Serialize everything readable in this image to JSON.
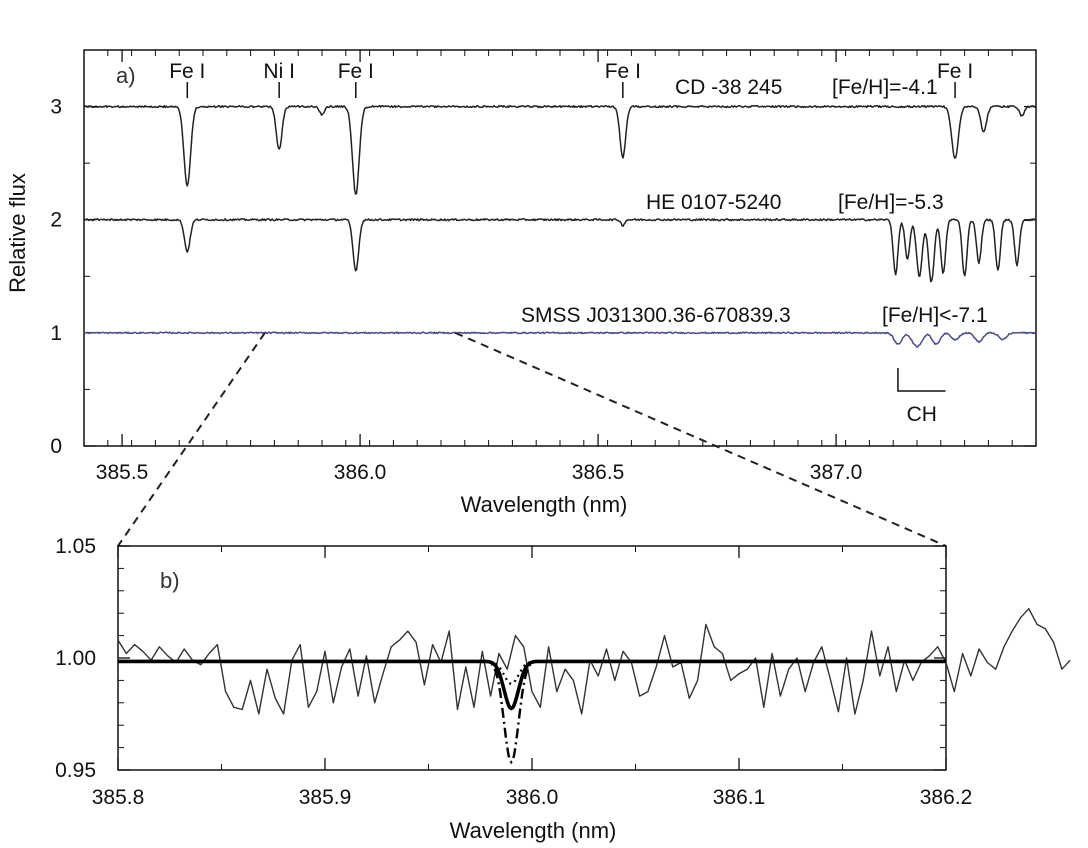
{
  "chart_data": [
    {
      "panel": "a",
      "type": "line",
      "panel_label": "a)",
      "xlabel": "Wavelength (nm)",
      "ylabel": "Relative flux",
      "xlim": [
        385.42,
        387.42
      ],
      "ylim": [
        0,
        3.5
      ],
      "xticks": [
        385.5,
        386.0,
        386.5,
        387.0
      ],
      "xtick_labels": [
        "385.5",
        "386.0",
        "386.5",
        "387.0"
      ],
      "yticks": [
        0,
        1,
        2,
        3
      ],
      "ytick_labels": [
        "0",
        "1",
        "2",
        "3"
      ],
      "series": [
        {
          "label": "CD -38 245",
          "metallicity": "[Fe/H]=-4.1",
          "baseline": 3.0,
          "noise": 0.008,
          "lines": [
            {
              "x": 385.637,
              "depth": 0.7,
              "width": 0.007
            },
            {
              "x": 385.83,
              "depth": 0.38,
              "width": 0.006
            },
            {
              "x": 385.92,
              "depth": 0.07,
              "width": 0.005
            },
            {
              "x": 385.991,
              "depth": 0.78,
              "width": 0.007
            },
            {
              "x": 386.552,
              "depth": 0.45,
              "width": 0.006
            },
            {
              "x": 387.25,
              "depth": 0.46,
              "width": 0.007
            },
            {
              "x": 387.31,
              "depth": 0.22,
              "width": 0.006
            },
            {
              "x": 387.39,
              "depth": 0.08,
              "width": 0.005
            }
          ]
        },
        {
          "label": "HE 0107-5240",
          "metallicity": "[Fe/H]=-5.3",
          "baseline": 2.0,
          "noise": 0.008,
          "lines": [
            {
              "x": 385.637,
              "depth": 0.28,
              "width": 0.006
            },
            {
              "x": 385.991,
              "depth": 0.45,
              "width": 0.006
            },
            {
              "x": 386.552,
              "depth": 0.05,
              "width": 0.004
            },
            {
              "x": 387.125,
              "depth": 0.48,
              "width": 0.005
            },
            {
              "x": 387.15,
              "depth": 0.35,
              "width": 0.005
            },
            {
              "x": 387.175,
              "depth": 0.5,
              "width": 0.006
            },
            {
              "x": 387.2,
              "depth": 0.55,
              "width": 0.006
            },
            {
              "x": 387.225,
              "depth": 0.48,
              "width": 0.005
            },
            {
              "x": 387.27,
              "depth": 0.5,
              "width": 0.005
            },
            {
              "x": 387.3,
              "depth": 0.38,
              "width": 0.005
            },
            {
              "x": 387.34,
              "depth": 0.45,
              "width": 0.005
            },
            {
              "x": 387.38,
              "depth": 0.4,
              "width": 0.005
            }
          ]
        },
        {
          "label": "SMSS J031300.36-670839.3",
          "metallicity": "[Fe/H]<-7.1",
          "baseline": 1.0,
          "noise": 0.006,
          "lines": [
            {
              "x": 387.13,
              "depth": 0.1,
              "width": 0.008
            },
            {
              "x": 387.17,
              "depth": 0.12,
              "width": 0.01
            },
            {
              "x": 387.21,
              "depth": 0.1,
              "width": 0.008
            },
            {
              "x": 387.25,
              "depth": 0.06,
              "width": 0.008
            },
            {
              "x": 387.3,
              "depth": 0.08,
              "width": 0.008
            },
            {
              "x": 387.35,
              "depth": 0.06,
              "width": 0.008
            }
          ]
        }
      ],
      "line_ids": [
        {
          "label": "Fe I",
          "x": 385.637
        },
        {
          "label": "Ni I",
          "x": 385.83
        },
        {
          "label": "Fe I",
          "x": 385.991
        },
        {
          "label": "Fe I",
          "x": 386.552
        },
        {
          "label": "Fe I",
          "x": 387.25
        }
      ],
      "band_label": "CH",
      "band_range": [
        387.13,
        387.23
      ]
    },
    {
      "panel": "b",
      "type": "line",
      "panel_label": "b)",
      "xlabel": "Wavelength (nm)",
      "xlim": [
        385.8,
        386.2
      ],
      "ylim": [
        0.95,
        1.05
      ],
      "xticks": [
        385.8,
        385.9,
        386.0,
        386.1,
        386.2
      ],
      "xtick_labels": [
        "385.8",
        "385.9",
        "386.0",
        "386.1",
        "386.2"
      ],
      "yticks": [
        0.95,
        1.0,
        1.05
      ],
      "ytick_labels": [
        "0.95",
        "1.00",
        "1.05"
      ],
      "observed": {
        "x_start": 385.8,
        "x_step": 0.004,
        "y": [
          1.008,
          1.002,
          1.006,
          1.003,
          0.999,
          1.005,
          1.001,
          0.998,
          1.004,
          0.999,
          0.997,
          1.002,
          1.006,
          0.985,
          0.978,
          0.977,
          0.99,
          0.975,
          0.995,
          0.982,
          0.975,
          0.999,
          1.006,
          0.978,
          0.985,
          1.003,
          0.98,
          0.996,
          1.004,
          0.983,
          1.001,
          0.98,
          0.993,
          1.005,
          1.008,
          1.012,
          1.007,
          0.988,
          1.006,
          0.998,
          1.012,
          0.977,
          0.996,
          0.978,
          1.003,
          0.983,
          1.002,
          0.995,
          1.01,
          1.005,
          0.985,
          0.978,
          1.005,
          0.985,
          0.995,
          0.99,
          0.975,
          0.999,
          0.992,
          1.004,
          0.99,
          1.003,
          0.998,
          0.983,
          0.985,
          0.996,
          1.01,
          0.996,
          0.998,
          0.982,
          0.99,
          1.015,
          1.005,
          1.002,
          0.99,
          0.993,
          0.995,
          1.0,
          0.978,
          1.002,
          0.983,
          0.995,
          1.0,
          0.985,
          0.998,
          1.005,
          0.991,
          0.976,
          1.0,
          0.975,
          0.99,
          1.012,
          0.992,
          1.005,
          0.985,
          0.999,
          0.99,
          0.998,
          1.001,
          1.005,
          0.998,
          0.985,
          1.002,
          0.992,
          1.004,
          0.998,
          0.995,
          1.005,
          1.012,
          1.018,
          1.022,
          1.015,
          1.013,
          1.007,
          0.995,
          0.999
        ]
      },
      "models": [
        {
          "style": "solid-thick",
          "center": 385.99,
          "depth": 0.021,
          "sigma": 0.0035,
          "continuum": 0.9985
        },
        {
          "style": "dash-dot",
          "center": 385.99,
          "depth": 0.045,
          "sigma": 0.0035,
          "continuum": 0.9985
        },
        {
          "style": "dotted",
          "center": 385.99,
          "depth": 0.01,
          "sigma": 0.0035,
          "continuum": 0.9985
        }
      ],
      "zoom_from": [
        385.8,
        386.2
      ]
    }
  ],
  "colors": {
    "axes": "#111111",
    "spectrum": "#222222",
    "smss_spectrum": "#4a4a8a",
    "panel_b_data": "#333333"
  }
}
